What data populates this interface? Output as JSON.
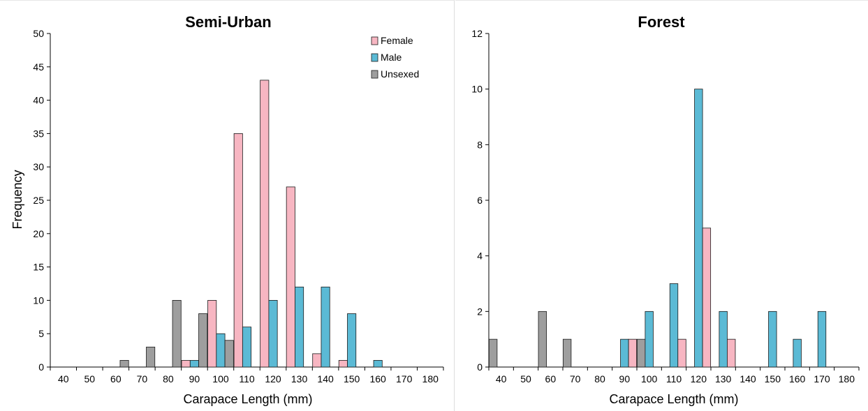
{
  "colors": {
    "female": "#f7b6c2",
    "male": "#5bbad5",
    "unsexed": "#9e9e9e",
    "bar_stroke": "#1a1a1a",
    "axis": "#000000"
  },
  "chart_data": [
    {
      "type": "bar",
      "title": "Semi-Urban",
      "xlabel": "Carapace Length (mm)",
      "ylabel": "Frequency",
      "ylim": [
        0,
        50
      ],
      "yticks": [
        0,
        5,
        10,
        15,
        20,
        25,
        30,
        35,
        40,
        45,
        50
      ],
      "categories": [
        "40",
        "50",
        "60",
        "70",
        "80",
        "90",
        "100",
        "110",
        "120",
        "130",
        "140",
        "150",
        "160",
        "170",
        "180"
      ],
      "legend_position": "top-right",
      "series": [
        {
          "name": "Female",
          "key": "female",
          "values": [
            0,
            0,
            0,
            0,
            0,
            1,
            10,
            35,
            43,
            27,
            2,
            1,
            0,
            0,
            0
          ]
        },
        {
          "name": "Male",
          "key": "male",
          "values": [
            0,
            0,
            0,
            0,
            0,
            1,
            5,
            6,
            10,
            12,
            12,
            8,
            1,
            0,
            0
          ]
        },
        {
          "name": "Unsexed",
          "key": "unsexed",
          "values": [
            0,
            0,
            1,
            3,
            10,
            8,
            4,
            0,
            0,
            0,
            0,
            0,
            0,
            0,
            0
          ]
        }
      ]
    },
    {
      "type": "bar",
      "title": "Forest",
      "xlabel": "Carapace Length (mm)",
      "ylabel": "",
      "ylim": [
        0,
        12
      ],
      "yticks": [
        0,
        2,
        4,
        6,
        8,
        10,
        12
      ],
      "categories": [
        "40",
        "50",
        "60",
        "70",
        "80",
        "90",
        "100",
        "110",
        "120",
        "130",
        "140",
        "150",
        "160",
        "170",
        "180"
      ],
      "series": [
        {
          "key": "unsexed",
          "values": [
            1,
            0,
            2,
            1,
            0,
            0,
            1,
            0,
            0,
            0,
            0,
            0,
            0,
            0,
            0
          ]
        },
        {
          "key": "male",
          "values": [
            0,
            0,
            0,
            0,
            0,
            1,
            2,
            3,
            10,
            2,
            0,
            2,
            1,
            2,
            0
          ]
        },
        {
          "key": "female",
          "values": [
            0,
            0,
            0,
            0,
            0,
            1,
            0,
            1,
            5,
            1,
            0,
            0,
            0,
            0,
            0
          ]
        }
      ]
    }
  ]
}
